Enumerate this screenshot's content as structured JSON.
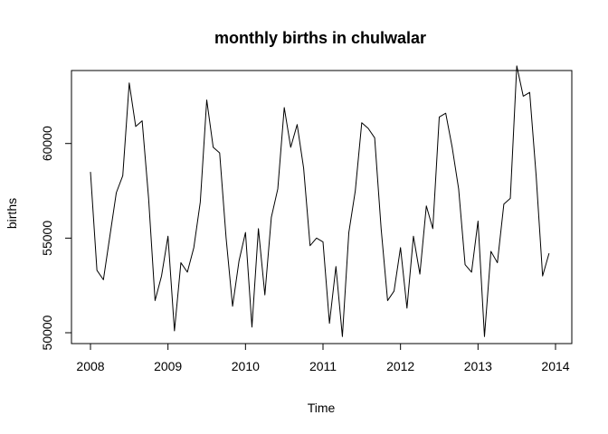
{
  "chart_data": {
    "type": "line",
    "title": "monthly births in chulwalar",
    "xlabel": "Time",
    "ylabel": "births",
    "xlim": [
      2008,
      2014
    ],
    "ylim": [
      50000,
      64000
    ],
    "x_ticks": [
      2008,
      2009,
      2010,
      2011,
      2012,
      2013,
      2014
    ],
    "y_ticks": [
      50000,
      55000,
      60000
    ],
    "grid": false,
    "line_color": "#000000",
    "series": [
      {
        "start": 2008,
        "frequency": 12,
        "values": [
          58500,
          53300,
          52800,
          55100,
          57400,
          58300,
          63200,
          60900,
          61200,
          57100,
          51700,
          53000,
          55100,
          50100,
          53700,
          53200,
          54500,
          56900,
          62300,
          59800,
          59500,
          55000,
          51400,
          53800,
          55300,
          50300,
          55500,
          52000,
          56100,
          57600,
          61900,
          59800,
          61000,
          58700,
          54600,
          55000,
          54800,
          50500,
          53500,
          49800,
          55300,
          57500,
          61100,
          60800,
          60300,
          55500,
          51700,
          52200,
          54500,
          51300,
          55100,
          53100,
          56700,
          55500,
          61400,
          61600,
          59800,
          57600,
          53600,
          53200,
          55900,
          49800,
          54300,
          53700,
          56800,
          57100,
          64100,
          62500,
          62700,
          58300,
          53000,
          54200
        ]
      }
    ]
  }
}
